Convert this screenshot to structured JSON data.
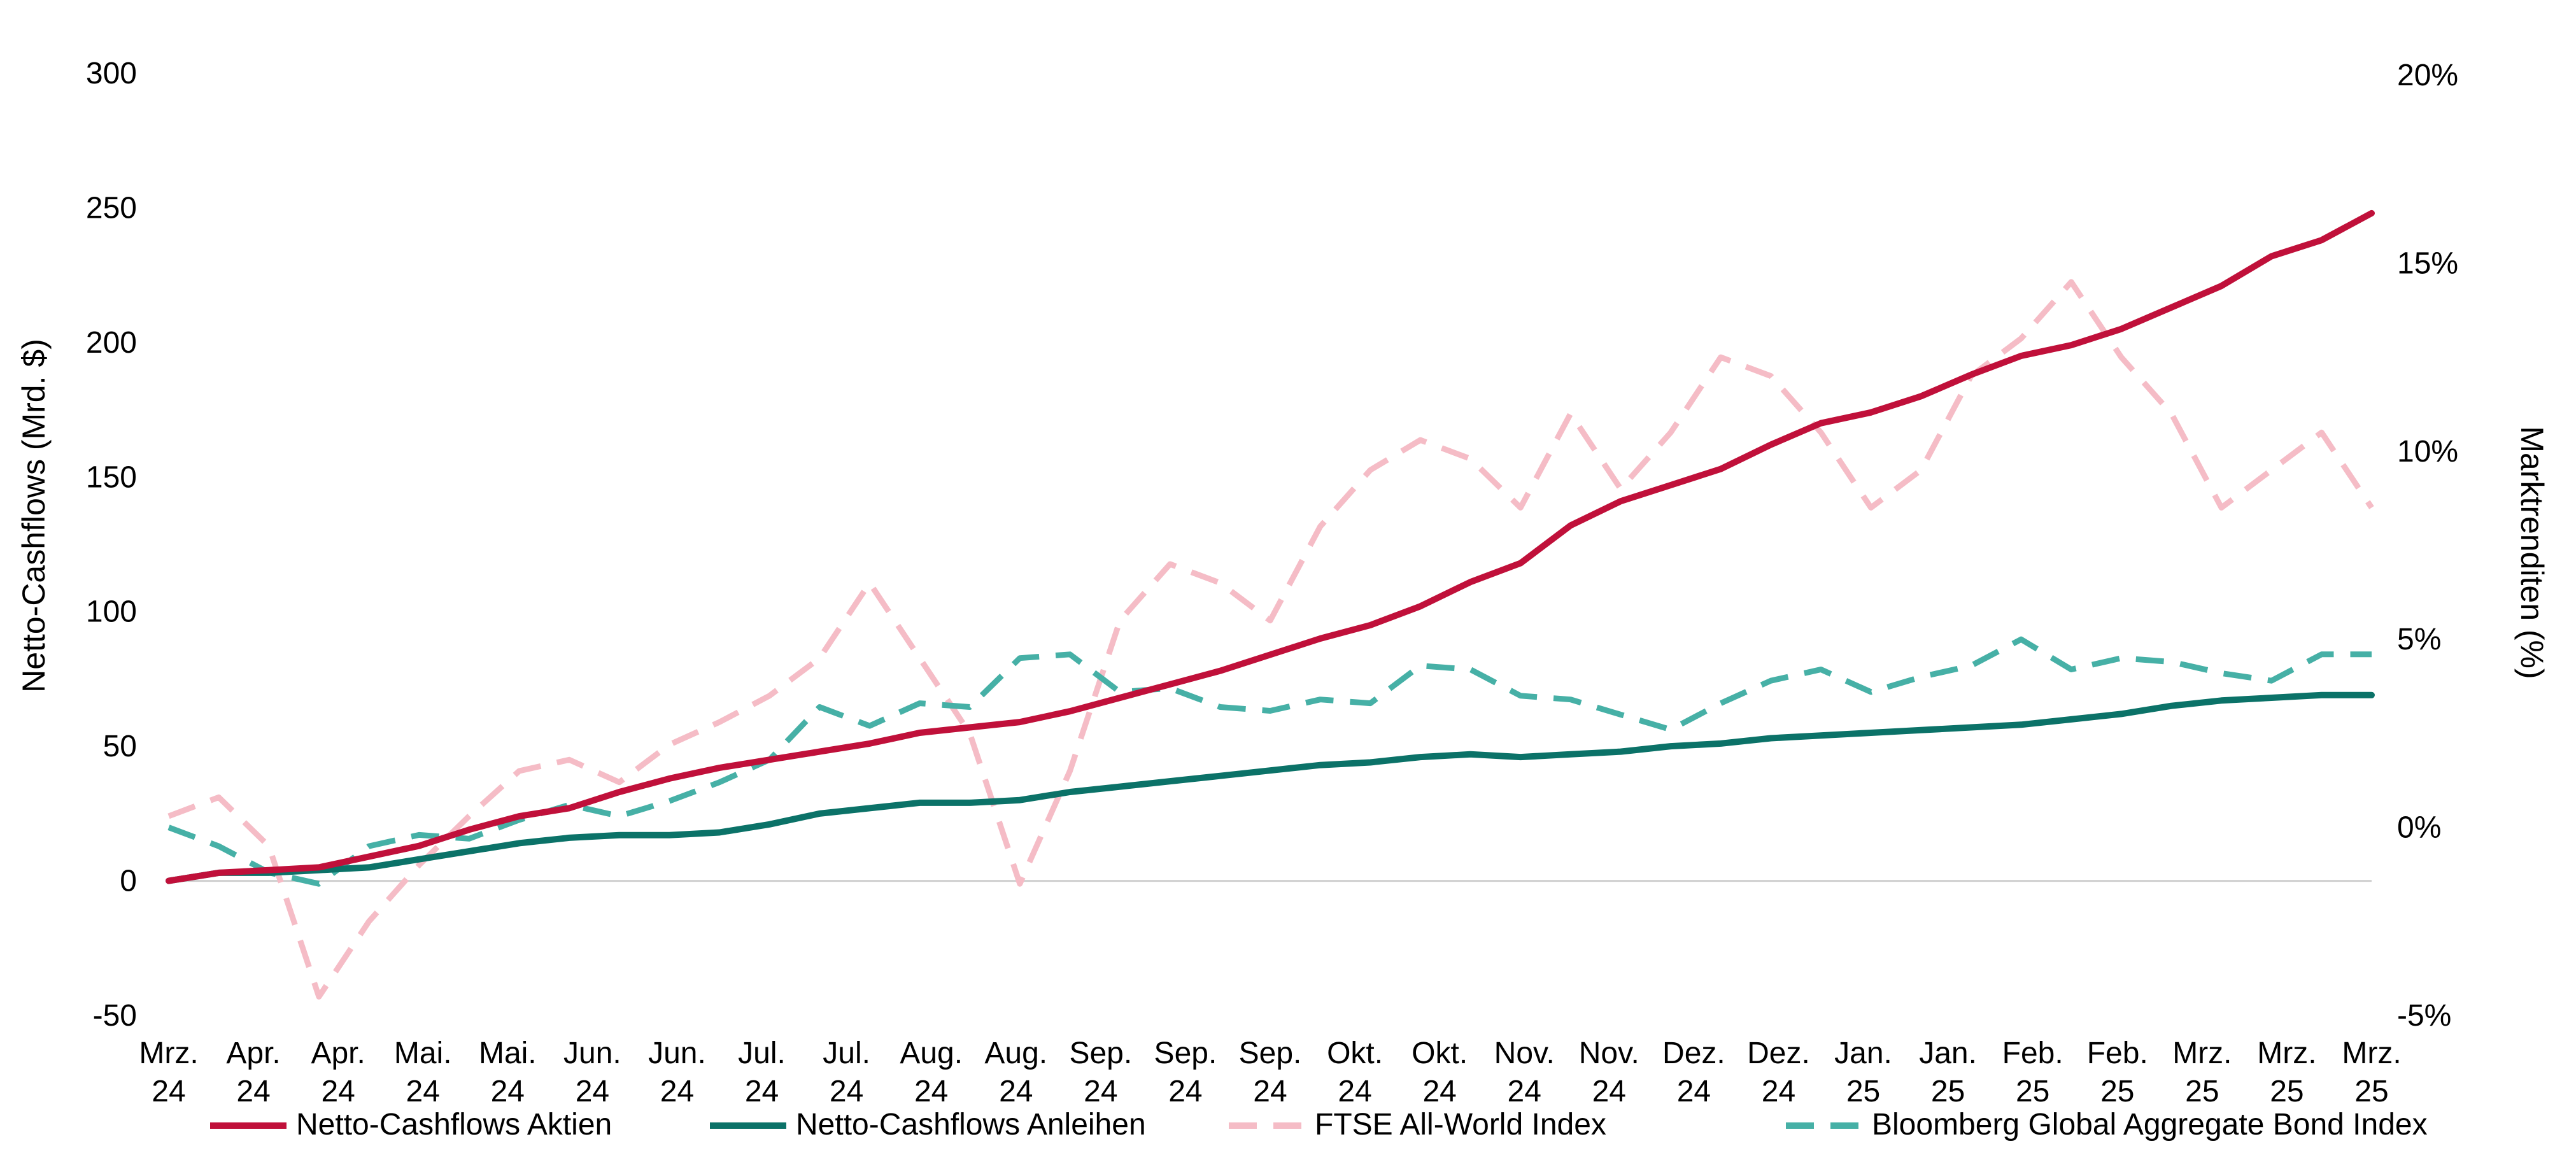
{
  "chart_data": {
    "type": "line",
    "title": "",
    "ylabel_left": "Netto-Cashflows (Mrd. $)",
    "ylabel_right": "Marktrenditen (%)",
    "ylim_left": [
      -50,
      300
    ],
    "yticks_left": [
      "300",
      "250",
      "200",
      "150",
      "100",
      "50",
      "0",
      "-50"
    ],
    "ylim_right": [
      -5,
      20
    ],
    "yticks_right": [
      "20%",
      "15%",
      "10%",
      "5%",
      "0%",
      "-5%"
    ],
    "xticks": [
      [
        "Mrz.",
        "24"
      ],
      [
        "Apr.",
        "24"
      ],
      [
        "Apr.",
        "24"
      ],
      [
        "Mai.",
        "24"
      ],
      [
        "Mai.",
        "24"
      ],
      [
        "Jun.",
        "24"
      ],
      [
        "Jun.",
        "24"
      ],
      [
        "Jul.",
        "24"
      ],
      [
        "Jul.",
        "24"
      ],
      [
        "Aug.",
        "24"
      ],
      [
        "Aug.",
        "24"
      ],
      [
        "Sep.",
        "24"
      ],
      [
        "Sep.",
        "24"
      ],
      [
        "Sep.",
        "24"
      ],
      [
        "Okt.",
        "24"
      ],
      [
        "Okt.",
        "24"
      ],
      [
        "Nov.",
        "24"
      ],
      [
        "Nov.",
        "24"
      ],
      [
        "Dez.",
        "24"
      ],
      [
        "Dez.",
        "24"
      ],
      [
        "Jan.",
        "25"
      ],
      [
        "Jan.",
        "25"
      ],
      [
        "Feb.",
        "25"
      ],
      [
        "Feb.",
        "25"
      ],
      [
        "Mrz.",
        "25"
      ],
      [
        "Mrz.",
        "25"
      ],
      [
        "Mrz.",
        "25"
      ]
    ],
    "grid": false,
    "legend_position": "bottom",
    "series": [
      {
        "name": "Netto-Cashflows Aktien",
        "axis": "left",
        "color": "#c0103a",
        "style": "solid",
        "values": [
          0,
          3,
          4,
          5,
          9,
          13,
          19,
          24,
          27,
          33,
          38,
          42,
          45,
          48,
          51,
          55,
          57,
          59,
          63,
          68,
          73,
          78,
          84,
          90,
          95,
          102,
          111,
          118,
          132,
          141,
          147,
          153,
          162,
          170,
          174,
          180,
          188,
          195,
          199,
          205,
          213,
          221,
          232,
          238,
          248
        ]
      },
      {
        "name": "Netto-Cashflows Anleihen",
        "axis": "left",
        "color": "#0b7268",
        "style": "solid",
        "values": [
          0,
          3,
          3,
          4,
          5,
          8,
          11,
          14,
          16,
          17,
          17,
          18,
          21,
          25,
          27,
          29,
          29,
          30,
          33,
          35,
          37,
          39,
          41,
          43,
          44,
          46,
          47,
          46,
          47,
          48,
          50,
          51,
          53,
          54,
          55,
          56,
          57,
          58,
          60,
          62,
          65,
          67,
          68,
          69,
          69
        ]
      },
      {
        "name": "FTSE All-World Index",
        "axis": "right",
        "color": "#f5bcc6",
        "style": "dashed",
        "values": [
          0.3,
          0.8,
          -0.5,
          -4.5,
          -2.5,
          -1,
          0.3,
          1.5,
          1.8,
          1.2,
          2.2,
          2.8,
          3.5,
          4.5,
          6.5,
          4.5,
          2.5,
          -1.5,
          1.5,
          5.5,
          7,
          6.5,
          5.5,
          8,
          9.5,
          10.3,
          9.8,
          8.5,
          11,
          9,
          10.5,
          12.5,
          12,
          10.5,
          8.5,
          9.5,
          12,
          13,
          14.5,
          12.5,
          11,
          8.5,
          9.5,
          10.5,
          8.5
        ]
      },
      {
        "name": "Bloomberg Global Aggregate Bond Index",
        "axis": "right",
        "color": "#46b0a6",
        "style": "dashed",
        "values": [
          0,
          -0.5,
          -1.2,
          -1.5,
          -0.5,
          -0.2,
          -0.3,
          0.2,
          0.6,
          0.3,
          0.7,
          1.2,
          1.8,
          3.2,
          2.7,
          3.3,
          3.2,
          4.5,
          4.6,
          3.6,
          3.7,
          3.2,
          3.1,
          3.4,
          3.3,
          4.3,
          4.2,
          3.5,
          3.4,
          3.0,
          2.6,
          3.3,
          3.9,
          4.2,
          3.6,
          4.0,
          4.3,
          5.0,
          4.2,
          4.5,
          4.4,
          4.1,
          3.9,
          4.6,
          4.6
        ]
      }
    ]
  }
}
